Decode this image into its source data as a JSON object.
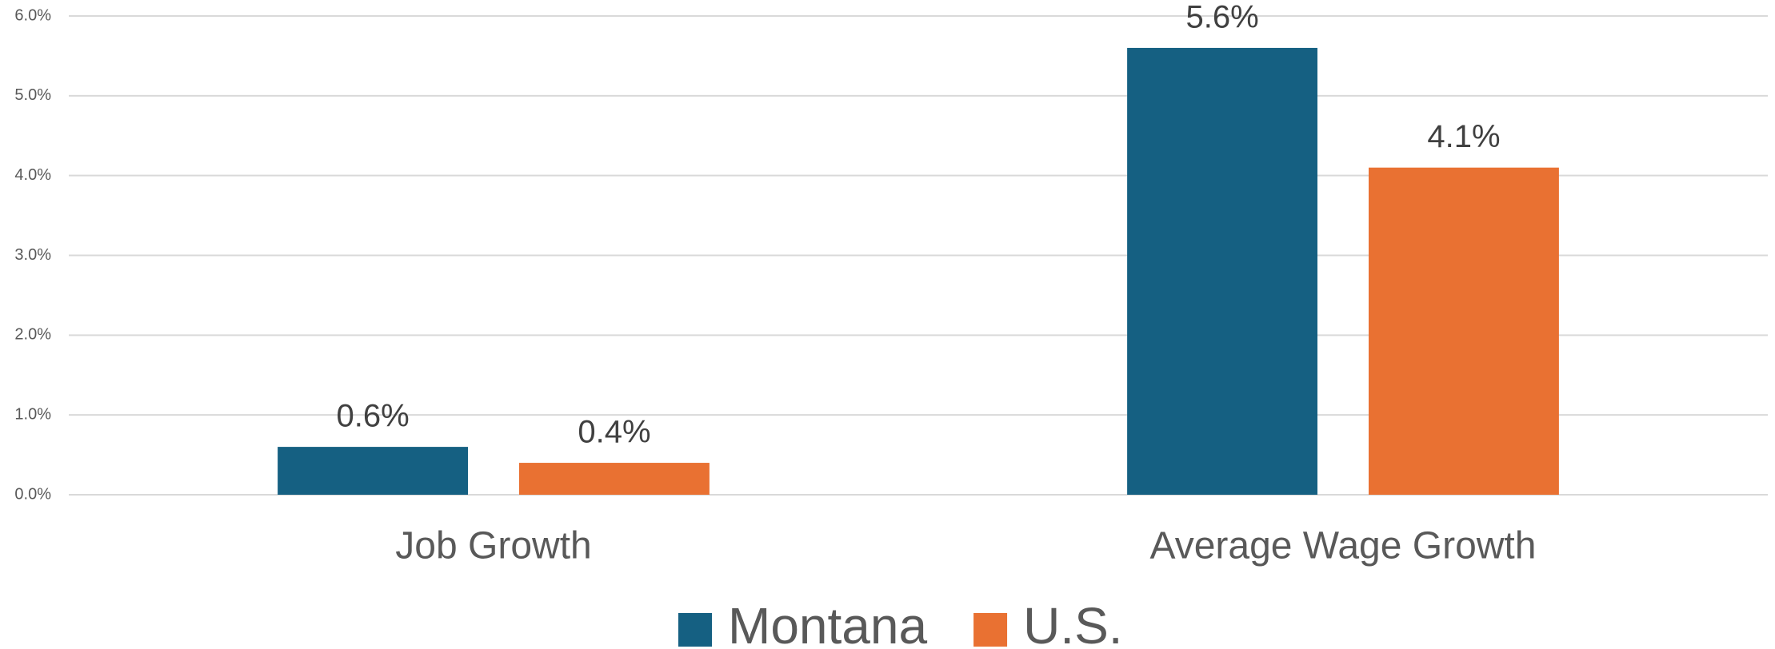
{
  "chart_data": {
    "type": "bar",
    "categories": [
      "Job Growth",
      "Average Wage Growth"
    ],
    "series": [
      {
        "name": "Montana",
        "color": "#156082",
        "values": [
          0.6,
          5.6
        ],
        "value_labels": [
          "0.6%",
          "5.6%"
        ]
      },
      {
        "name": "U.S.",
        "color": "#e97132",
        "values": [
          0.4,
          4.1
        ],
        "value_labels": [
          "0.4%",
          "4.1%"
        ]
      }
    ],
    "ylim": [
      0,
      6
    ],
    "yticks": [
      {
        "value": 0,
        "label": "0.0%"
      },
      {
        "value": 1,
        "label": "1.0%"
      },
      {
        "value": 2,
        "label": "2.0%"
      },
      {
        "value": 3,
        "label": "3.0%"
      },
      {
        "value": 4,
        "label": "4.0%"
      },
      {
        "value": 5,
        "label": "5.0%"
      },
      {
        "value": 6,
        "label": "6.0%"
      }
    ],
    "grid": true,
    "legend": "bottom"
  }
}
